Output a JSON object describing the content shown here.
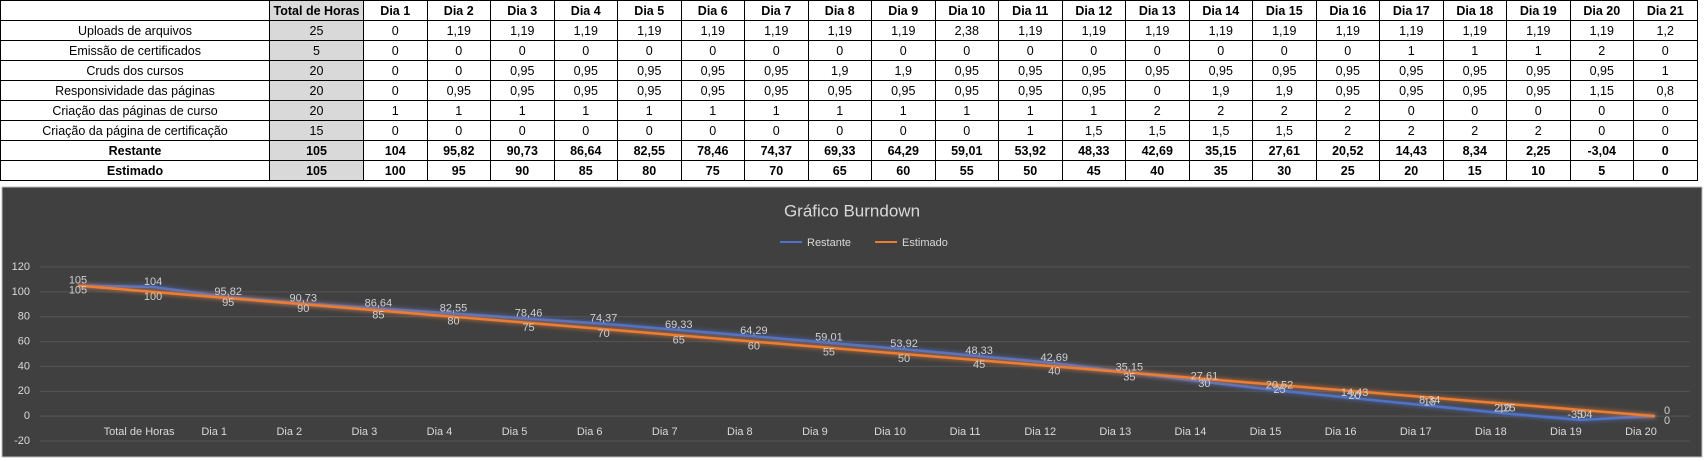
{
  "table": {
    "header": [
      "Total de Horas",
      "Dia 1",
      "Dia 2",
      "Dia 3",
      "Dia 4",
      "Dia 5",
      "Dia 6",
      "Dia 7",
      "Dia 8",
      "Dia 9",
      "Dia 10",
      "Dia 11",
      "Dia 12",
      "Dia 13",
      "Dia 14",
      "Dia 15",
      "Dia 16",
      "Dia 17",
      "Dia 18",
      "Dia 19",
      "Dia 20",
      "Dia 21"
    ],
    "rows": [
      {
        "label": "Uploads de arquivos",
        "cells": [
          "25",
          "0",
          "1,19",
          "1,19",
          "1,19",
          "1,19",
          "1,19",
          "1,19",
          "1,19",
          "1,19",
          "2,38",
          "1,19",
          "1,19",
          "1,19",
          "1,19",
          "1,19",
          "1,19",
          "1,19",
          "1,19",
          "1,19",
          "1,19",
          "1,2"
        ]
      },
      {
        "label": "Emissão de certificados",
        "cells": [
          "5",
          "0",
          "0",
          "0",
          "0",
          "0",
          "0",
          "0",
          "0",
          "0",
          "0",
          "0",
          "0",
          "0",
          "0",
          "0",
          "0",
          "1",
          "1",
          "1",
          "2",
          "0"
        ]
      },
      {
        "label": "Cruds dos cursos",
        "cells": [
          "20",
          "0",
          "0",
          "0,95",
          "0,95",
          "0,95",
          "0,95",
          "0,95",
          "1,9",
          "1,9",
          "0,95",
          "0,95",
          "0,95",
          "0,95",
          "0,95",
          "0,95",
          "0,95",
          "0,95",
          "0,95",
          "0,95",
          "0,95",
          "1"
        ]
      },
      {
        "label": "Responsividade das páginas",
        "cells": [
          "20",
          "0",
          "0,95",
          "0,95",
          "0,95",
          "0,95",
          "0,95",
          "0,95",
          "0,95",
          "0,95",
          "0,95",
          "0,95",
          "0,95",
          "0",
          "1,9",
          "1,9",
          "0,95",
          "0,95",
          "0,95",
          "0,95",
          "1,15",
          "0,8"
        ]
      },
      {
        "label": "Criação das páginas de curso",
        "cells": [
          "20",
          "1",
          "1",
          "1",
          "1",
          "1",
          "1",
          "1",
          "1",
          "1",
          "1",
          "1",
          "1",
          "2",
          "2",
          "2",
          "2",
          "0",
          "0",
          "0",
          "0",
          "0"
        ]
      },
      {
        "label": "Criação da página de certificação",
        "cells": [
          "15",
          "0",
          "0",
          "0",
          "0",
          "0",
          "0",
          "0",
          "0",
          "0",
          "0",
          "1",
          "1,5",
          "1,5",
          "1,5",
          "1,5",
          "2",
          "2",
          "2",
          "2",
          "0",
          "0"
        ]
      },
      {
        "label": "Restante",
        "cells": [
          "105",
          "104",
          "95,82",
          "90,73",
          "86,64",
          "82,55",
          "78,46",
          "74,37",
          "69,33",
          "64,29",
          "59,01",
          "53,92",
          "48,33",
          "42,69",
          "35,15",
          "27,61",
          "20,52",
          "14,43",
          "8,34",
          "2,25",
          "-3,04",
          "0"
        ]
      },
      {
        "label": "Estimado",
        "cells": [
          "105",
          "100",
          "95",
          "90",
          "85",
          "80",
          "75",
          "70",
          "65",
          "60",
          "55",
          "50",
          "45",
          "40",
          "35",
          "30",
          "25",
          "20",
          "15",
          "10",
          "5",
          "0"
        ]
      }
    ]
  },
  "chart_data": {
    "type": "line",
    "title": "Gráfico Burndown",
    "categories": [
      null,
      "Total de Horas",
      "Dia 1",
      "Dia 2",
      "Dia 3",
      "Dia 4",
      "Dia 5",
      "Dia 6",
      "Dia 7",
      "Dia 8",
      "Dia 9",
      "Dia 10",
      "Dia 11",
      "Dia 12",
      "Dia 13",
      "Dia 14",
      "Dia 15",
      "Dia 16",
      "Dia 17",
      "Dia 18",
      "Dia 19",
      "Dia 20"
    ],
    "series": [
      {
        "name": "Restante",
        "color": "#4f72c9",
        "values": [
          105,
          104,
          95.82,
          90.73,
          86.64,
          82.55,
          78.46,
          74.37,
          69.33,
          64.29,
          59.01,
          53.92,
          48.33,
          42.69,
          35.15,
          27.61,
          20.52,
          14.43,
          8.34,
          2.25,
          -3.04,
          0
        ],
        "value_labels": [
          "105",
          "104",
          "95,82",
          "90,73",
          "86,64",
          "82,55",
          "78,46",
          "74,37",
          "69,33",
          "64,29",
          "59,01",
          "53,92",
          "48,33",
          "42,69",
          "35,15",
          "27,61",
          "20,52",
          "14,43",
          "8,34",
          "2,25",
          "-3,04",
          "0"
        ]
      },
      {
        "name": "Estimado",
        "color": "#ed7d31",
        "values": [
          105,
          100,
          95,
          90,
          85,
          80,
          75,
          70,
          65,
          60,
          55,
          50,
          45,
          40,
          35,
          30,
          25,
          20,
          15,
          10,
          5,
          0
        ]
      }
    ],
    "ylim": [
      -20,
      120
    ],
    "yticks": [
      -20,
      0,
      20,
      40,
      60,
      80,
      100,
      120
    ],
    "grid": true,
    "legend": "top"
  }
}
